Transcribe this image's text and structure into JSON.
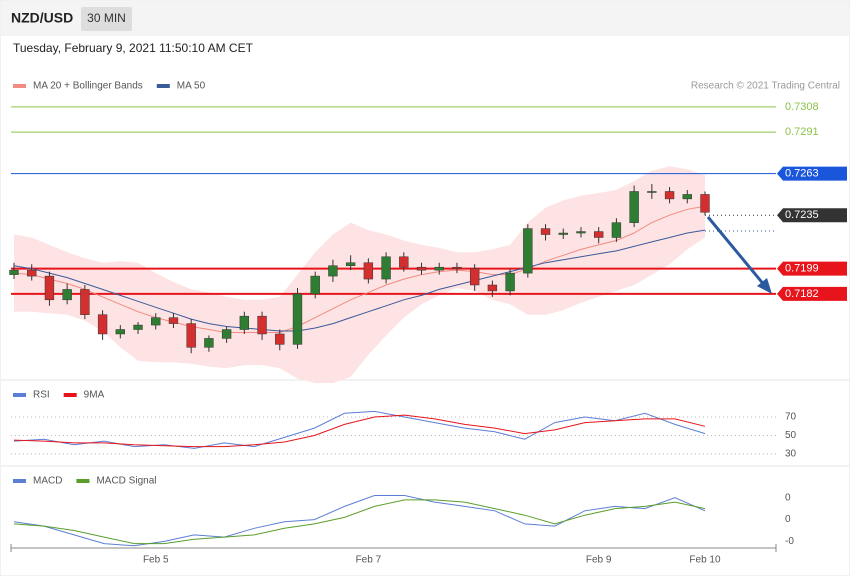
{
  "header": {
    "symbol": "NZD/USD",
    "timeframe": "30 MIN",
    "timestamp": "Tuesday, February 9, 2021 11:50:10 AM CET"
  },
  "chart_data": [
    {
      "type": "candlestick",
      "credit": "Research © 2021 Trading Central",
      "categories": [
        null,
        null,
        null,
        null,
        null,
        null,
        null,
        null,
        "Feb 5",
        null,
        null,
        null,
        null,
        null,
        null,
        null,
        null,
        null,
        null,
        null,
        "Feb 7",
        null,
        null,
        null,
        null,
        null,
        null,
        null,
        null,
        null,
        null,
        null,
        null,
        "Feb 9",
        null,
        null,
        null,
        null,
        null,
        "Feb 10"
      ],
      "open": [
        0.7195,
        0.7198,
        0.7194,
        0.7178,
        0.7185,
        0.7168,
        0.7155,
        0.7158,
        0.7161,
        0.7166,
        0.7162,
        0.7146,
        0.7152,
        0.7158,
        0.7167,
        0.7155,
        0.7148,
        0.7182,
        0.7194,
        0.7201,
        0.7203,
        0.7192,
        0.7207,
        0.72,
        0.7198,
        0.72,
        0.7199,
        0.7188,
        0.7184,
        0.7196,
        0.7226,
        0.7222,
        0.7223,
        0.7224,
        0.722,
        0.723,
        0.7251,
        0.7251,
        0.7246,
        0.7249
      ],
      "high": [
        0.7203,
        0.7202,
        0.7197,
        0.7189,
        0.7188,
        0.7171,
        0.7161,
        0.7163,
        0.7169,
        0.7169,
        0.7165,
        0.7154,
        0.716,
        0.717,
        0.717,
        0.7158,
        0.7186,
        0.7197,
        0.7205,
        0.7208,
        0.7206,
        0.721,
        0.721,
        0.7203,
        0.7203,
        0.7203,
        0.7202,
        0.7191,
        0.7199,
        0.7229,
        0.7229,
        0.7226,
        0.7227,
        0.7227,
        0.7233,
        0.7255,
        0.7256,
        0.7254,
        0.7252,
        0.7251
      ],
      "low": [
        0.7192,
        0.7191,
        0.7174,
        0.7175,
        0.7165,
        0.7151,
        0.7152,
        0.7155,
        0.7158,
        0.7159,
        0.7142,
        0.7143,
        0.7149,
        0.7155,
        0.7151,
        0.7144,
        0.7145,
        0.7179,
        0.719,
        0.7198,
        0.7189,
        0.7189,
        0.7197,
        0.7195,
        0.7195,
        0.7196,
        0.7184,
        0.718,
        0.7181,
        0.7193,
        0.7218,
        0.7219,
        0.722,
        0.7216,
        0.7217,
        0.7227,
        0.7246,
        0.7243,
        0.7243,
        0.7235
      ],
      "close": [
        0.7198,
        0.7194,
        0.7178,
        0.7185,
        0.7168,
        0.7155,
        0.7158,
        0.7161,
        0.7166,
        0.7162,
        0.7146,
        0.7152,
        0.7158,
        0.7167,
        0.7155,
        0.7148,
        0.7182,
        0.7194,
        0.7201,
        0.7203,
        0.7192,
        0.7207,
        0.72,
        0.7198,
        0.72,
        0.7199,
        0.7188,
        0.7184,
        0.7196,
        0.7226,
        0.7222,
        0.7223,
        0.7224,
        0.722,
        0.723,
        0.7251,
        0.7251,
        0.7246,
        0.7249,
        0.7237
      ],
      "up_color": "#2e7d32",
      "down_color": "#d32f2f",
      "series": [
        {
          "name": "MA 20 + Bollinger Bands",
          "color": "#f28b82",
          "band_color": "#fde3e3",
          "values": [
            0.7196,
            0.7195,
            0.7192,
            0.7189,
            0.7185,
            0.718,
            0.7175,
            0.717,
            0.7166,
            0.7163,
            0.716,
            0.7158,
            0.7156,
            0.7156,
            0.7156,
            0.7156,
            0.716,
            0.7166,
            0.7172,
            0.7178,
            0.7183,
            0.7188,
            0.7192,
            0.7195,
            0.7197,
            0.7198,
            0.7197,
            0.7195,
            0.7195,
            0.7199,
            0.7204,
            0.7208,
            0.7212,
            0.7215,
            0.7218,
            0.7223,
            0.723,
            0.7235,
            0.7239,
            0.7241
          ],
          "upper": [
            0.7222,
            0.722,
            0.7215,
            0.721,
            0.7206,
            0.7203,
            0.7204,
            0.7203,
            0.7196,
            0.719,
            0.7185,
            0.7183,
            0.718,
            0.7178,
            0.7178,
            0.718,
            0.7195,
            0.721,
            0.7222,
            0.723,
            0.7225,
            0.7222,
            0.7218,
            0.7215,
            0.7213,
            0.721,
            0.721,
            0.7212,
            0.7215,
            0.723,
            0.724,
            0.7245,
            0.7248,
            0.725,
            0.7252,
            0.7258,
            0.7265,
            0.7268,
            0.7266,
            0.7262
          ],
          "lower": [
            0.717,
            0.717,
            0.7169,
            0.7168,
            0.7164,
            0.7157,
            0.7146,
            0.7137,
            0.7136,
            0.7136,
            0.7135,
            0.7133,
            0.7132,
            0.7134,
            0.7134,
            0.7132,
            0.7125,
            0.7122,
            0.7122,
            0.7126,
            0.7141,
            0.7154,
            0.7166,
            0.7175,
            0.7181,
            0.7186,
            0.7184,
            0.7178,
            0.7175,
            0.7168,
            0.7168,
            0.7171,
            0.7176,
            0.718,
            0.7184,
            0.7188,
            0.7195,
            0.7202,
            0.7212,
            0.722
          ]
        },
        {
          "name": "MA 50",
          "color": "#3a5a9a",
          "values": [
            0.7201,
            0.7199,
            0.7196,
            0.7193,
            0.7189,
            0.7185,
            0.7181,
            0.7177,
            0.7173,
            0.7169,
            0.7165,
            0.7162,
            0.716,
            0.7159,
            0.7158,
            0.7157,
            0.7157,
            0.7159,
            0.7162,
            0.7166,
            0.717,
            0.7174,
            0.7178,
            0.7181,
            0.7185,
            0.7188,
            0.7191,
            0.7194,
            0.7197,
            0.72,
            0.7203,
            0.7205,
            0.7207,
            0.7209,
            0.7211,
            0.7214,
            0.7217,
            0.722,
            0.7223,
            0.7225
          ]
        }
      ],
      "levels": [
        {
          "value": 0.7308,
          "color": "#8bc34a",
          "style": "thin",
          "boxed": false
        },
        {
          "value": 0.7291,
          "color": "#8bc34a",
          "style": "thin",
          "boxed": false
        },
        {
          "value": 0.7263,
          "color": "#1a56db",
          "style": "thin",
          "boxed": true
        },
        {
          "value": 0.7235,
          "color": "#333333",
          "style": "dotted",
          "boxed": true
        },
        {
          "value": 0.7199,
          "color": "#e8141b",
          "style": "thick",
          "boxed": true
        },
        {
          "value": 0.7182,
          "color": "#e8141b",
          "style": "thick",
          "boxed": true
        }
      ],
      "ylim": [
        0.7125,
        0.7316
      ]
    },
    {
      "type": "line",
      "ylim": [
        20,
        100
      ],
      "yticks": [
        70,
        50,
        30
      ],
      "grid": "dotted",
      "series": [
        {
          "name": "RSI",
          "color": "#5b7fd6",
          "values": [
            44,
            46,
            40,
            44,
            38,
            40,
            36,
            42,
            38,
            48,
            58,
            74,
            76,
            70,
            64,
            58,
            54,
            46,
            64,
            70,
            66,
            74,
            62,
            52
          ]
        },
        {
          "name": "9MA",
          "color": "#e8141b",
          "values": [
            45,
            44,
            42,
            42,
            40,
            39,
            38,
            38,
            40,
            43,
            50,
            62,
            70,
            72,
            68,
            62,
            58,
            52,
            56,
            64,
            66,
            68,
            68,
            60
          ]
        }
      ]
    },
    {
      "type": "line",
      "ylim": [
        -0.0013,
        0.0019
      ],
      "yticks": [
        {
          "value": 0.001,
          "label": "0"
        },
        {
          "value": 0,
          "label": "0"
        },
        {
          "value": -0.001,
          "label": "-0"
        }
      ],
      "series": [
        {
          "name": "MACD",
          "color": "#5b7fd6",
          "values": [
            -0.0001,
            -0.0003,
            -0.0007,
            -0.0011,
            -0.0012,
            -0.001,
            -0.0007,
            -0.0008,
            -0.0004,
            -0.0001,
            0.0,
            0.0006,
            0.0011,
            0.0011,
            0.0008,
            0.0006,
            0.0004,
            -0.0002,
            -0.0003,
            0.0004,
            0.0006,
            0.0005,
            0.001,
            0.0004
          ]
        },
        {
          "name": "MACD Signal",
          "color": "#5a9e2a",
          "values": [
            -0.0002,
            -0.0003,
            -0.0005,
            -0.0008,
            -0.0011,
            -0.0011,
            -0.0009,
            -0.0008,
            -0.0007,
            -0.0004,
            -0.0002,
            0.0001,
            0.0006,
            0.0009,
            0.0009,
            0.0008,
            0.0005,
            0.0002,
            -0.0002,
            0.0002,
            0.0005,
            0.0006,
            0.0008,
            0.0005
          ]
        }
      ]
    }
  ]
}
